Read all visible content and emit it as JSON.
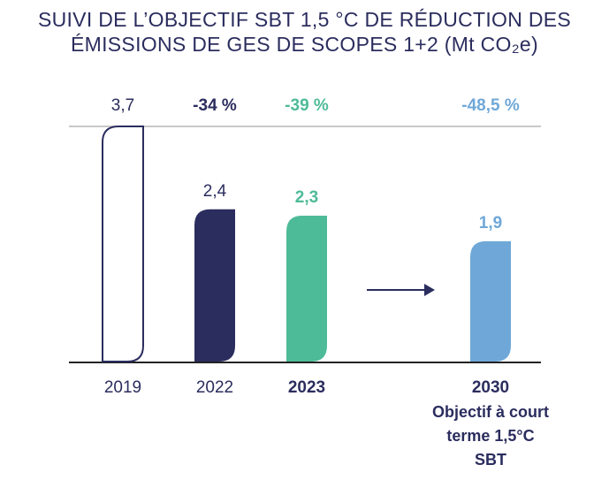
{
  "chart_data": {
    "type": "bar",
    "title": "SUIVI DE L’OBJECTIF SBT 1,5 °C DE RÉDUCTION DES ÉMISSIONS DE GES DE SCOPES 1+2 (Mt CO₂e)",
    "categories": [
      "2019",
      "2022",
      "2023",
      "2030"
    ],
    "bold_categories": [
      false,
      false,
      true,
      true
    ],
    "annotation": "Objectif à court terme 1,5°C SBT",
    "values": [
      3.7,
      2.4,
      2.3,
      1.9
    ],
    "value_labels": [
      "3,7",
      "2,4",
      "2,3",
      "1,9"
    ],
    "changes": [
      null,
      -34,
      -39,
      -48.5
    ],
    "change_labels": [
      null,
      "-34 %",
      "-39 %",
      "-48,5 %"
    ],
    "fills": [
      "#ffffff",
      "#2b2d5e",
      "#4dbb98",
      "#6fa8d8"
    ],
    "stroke": "#2b2d5e",
    "label_colors": [
      "#2b2d5e",
      "#2b2d5e",
      "#4dbb98",
      "#6fa8d8"
    ],
    "ylim": [
      0,
      3.7
    ]
  }
}
